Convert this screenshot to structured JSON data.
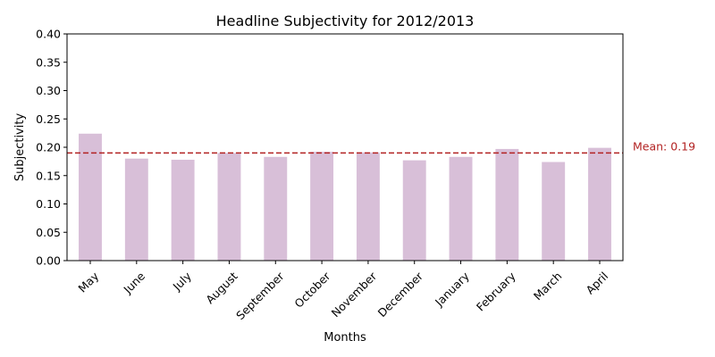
{
  "chart_data": {
    "type": "bar",
    "title": "Headline Subjectivity for 2012/2013",
    "xlabel": "Months",
    "ylabel": "Subjectivity",
    "categories": [
      "May",
      "June",
      "July",
      "August",
      "September",
      "October",
      "November",
      "December",
      "January",
      "February",
      "March",
      "April"
    ],
    "values": [
      0.224,
      0.18,
      0.178,
      0.19,
      0.183,
      0.192,
      0.191,
      0.177,
      0.183,
      0.197,
      0.174,
      0.199
    ],
    "ylim": [
      0,
      0.4
    ],
    "yticks": [
      "0.00",
      "0.05",
      "0.10",
      "0.15",
      "0.20",
      "0.25",
      "0.30",
      "0.35",
      "0.40"
    ],
    "bar_color": "#d8bfd8",
    "mean": {
      "value": 0.19,
      "label": "Mean: 0.19",
      "color": "#b22222"
    },
    "grid": false
  }
}
